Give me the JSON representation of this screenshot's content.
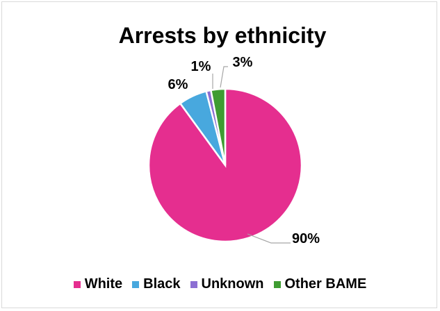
{
  "chart_data": {
    "type": "pie",
    "title": "Arrests by ethnicity",
    "slices": [
      {
        "label": "White",
        "value": 90,
        "display": "90%",
        "color": "#e52e8f"
      },
      {
        "label": "Black",
        "value": 6,
        "display": "6%",
        "color": "#48a8de"
      },
      {
        "label": "Unknown",
        "value": 1,
        "display": "1%",
        "color": "#8c6fd3"
      },
      {
        "label": "Other BAME",
        "value": 3,
        "display": "3%",
        "color": "#3f9c32"
      }
    ],
    "legend_position": "bottom"
  }
}
